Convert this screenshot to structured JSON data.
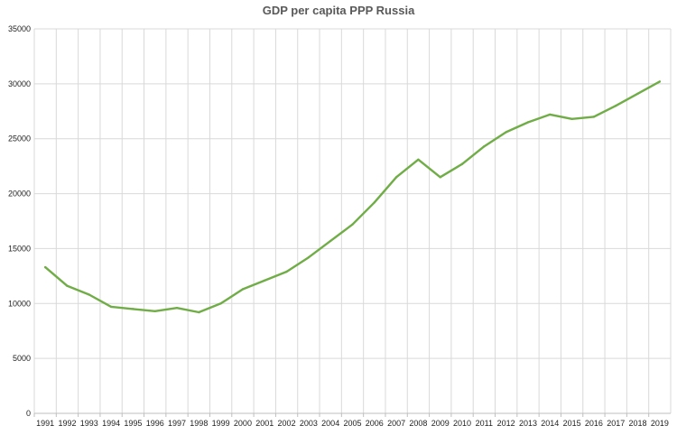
{
  "chart_data": {
    "type": "line",
    "title": "GDP per capita PPP Russia",
    "xlabel": "",
    "ylabel": "",
    "ylim": [
      0,
      35000
    ],
    "yticks": [
      "0",
      "5000",
      "10000",
      "15000",
      "20000",
      "25000",
      "30000",
      "35000"
    ],
    "x": [
      "1991",
      "1992",
      "1993",
      "1994",
      "1995",
      "1996",
      "1997",
      "1998",
      "1999",
      "2000",
      "2001",
      "2002",
      "2003",
      "2004",
      "2005",
      "2006",
      "2007",
      "2008",
      "2009",
      "2010",
      "2011",
      "2012",
      "2013",
      "2014",
      "2015",
      "2016",
      "2017",
      "2018",
      "2019"
    ],
    "series": [
      {
        "name": "",
        "color": "#70ad47",
        "values": [
          13300,
          11600,
          10800,
          9700,
          9500,
          9300,
          9600,
          9200,
          10000,
          11300,
          12100,
          12900,
          14200,
          15700,
          17200,
          19200,
          21500,
          23100,
          21500,
          22700,
          24300,
          25600,
          26500,
          27200,
          26800,
          27000,
          28000,
          29100,
          30200
        ]
      }
    ],
    "grid": true,
    "legend": "none"
  }
}
